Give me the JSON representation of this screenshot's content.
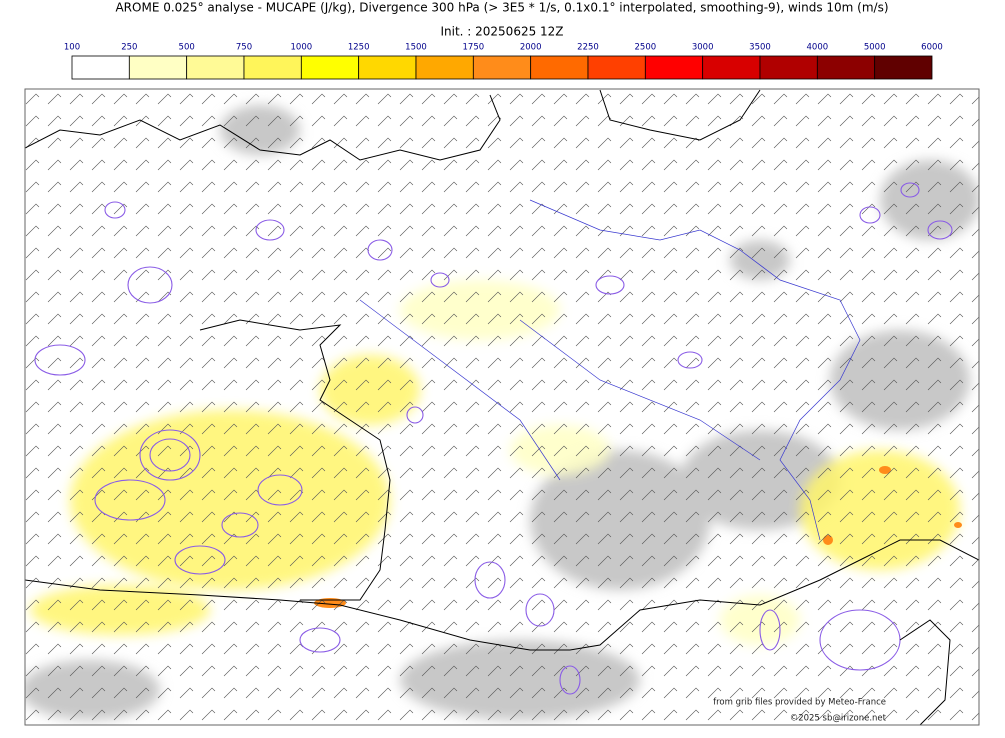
{
  "title": "AROME 0.025° analyse - MUCAPE (J/kg), Divergence 300 hPa (> 3E5 * 1/s, 0.1x0.1° interpolated, smoothing-9), winds 10m (m/s)",
  "init": "Init. : 20250625 12Z",
  "colorbar": {
    "ticks": [
      100,
      250,
      500,
      750,
      1000,
      1250,
      1500,
      1750,
      2000,
      2250,
      2500,
      3000,
      3500,
      4000,
      5000,
      6000
    ],
    "colors": [
      "#ffffff",
      "#ffffc4",
      "#fffa96",
      "#fff55a",
      "#ffff00",
      "#ffd800",
      "#ffa800",
      "#ff8c1a",
      "#ff6a00",
      "#ff4000",
      "#ff0000",
      "#d80000",
      "#b00000",
      "#8c0000",
      "#600000"
    ]
  },
  "credits": [
    "from grib files provided by Meteo-France",
    "©2025 sb@irizone.net"
  ]
}
